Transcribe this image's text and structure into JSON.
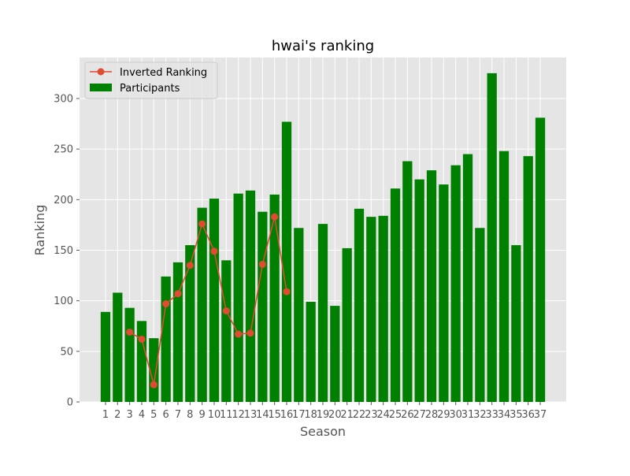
{
  "chart_data": {
    "type": "bar",
    "title": "hwai's ranking",
    "xlabel": "Season",
    "ylabel": "Ranking",
    "xlim": [
      -1.15,
      39.15
    ],
    "ylim": [
      0,
      340.5
    ],
    "yticks": [
      0,
      50,
      100,
      150,
      200,
      250,
      300
    ],
    "grid": true,
    "style": "ggplot",
    "legend_position": "top-left",
    "categories": [
      1,
      2,
      3,
      4,
      5,
      6,
      7,
      8,
      9,
      10,
      11,
      12,
      13,
      14,
      15,
      16,
      17,
      18,
      19,
      20,
      21,
      22,
      23,
      24,
      25,
      26,
      27,
      28,
      29,
      30,
      31,
      32,
      33,
      34,
      35,
      36,
      37
    ],
    "series": [
      {
        "name": "Participants",
        "type": "bar",
        "color": "#008000",
        "x": [
          1,
          2,
          3,
          4,
          5,
          6,
          7,
          8,
          9,
          10,
          11,
          12,
          13,
          14,
          15,
          16,
          17,
          18,
          19,
          20,
          21,
          22,
          23,
          24,
          25,
          26,
          27,
          28,
          29,
          30,
          31,
          32,
          33,
          34,
          35,
          36,
          37
        ],
        "values": [
          89,
          108,
          93,
          80,
          63,
          124,
          138,
          155,
          192,
          201,
          140,
          206,
          209,
          188,
          205,
          277,
          172,
          99,
          176,
          95,
          152,
          191,
          183,
          184,
          211,
          238,
          220,
          229,
          215,
          234,
          245,
          172,
          325,
          248,
          155,
          243,
          281
        ]
      },
      {
        "name": "Inverted Ranking",
        "type": "line",
        "color": "#E24A33",
        "marker": "o",
        "x": [
          3,
          4,
          5,
          6,
          7,
          8,
          9,
          10,
          11,
          12,
          13,
          14,
          15,
          16
        ],
        "values": [
          69,
          62,
          17,
          97,
          107,
          135,
          176,
          149,
          90,
          67,
          68,
          136,
          183,
          109
        ]
      }
    ]
  }
}
